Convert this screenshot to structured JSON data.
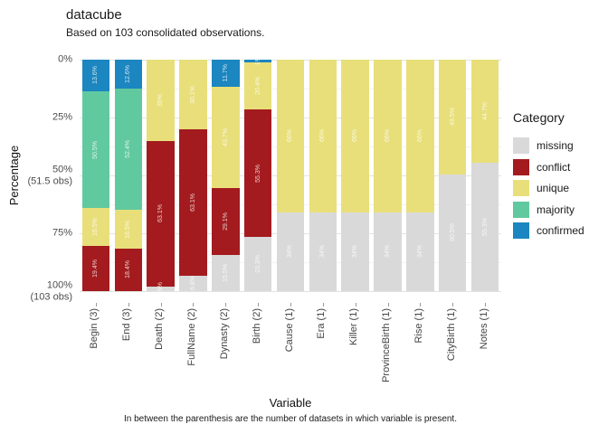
{
  "chart_data": {
    "type": "bar",
    "stacked": true,
    "percent": true,
    "y_reversed": true,
    "grid": true,
    "title": "datacube",
    "subtitle": "Based on 103 consolidated observations.",
    "xlabel": "Variable",
    "ylabel": "Percentage",
    "caption": "In between the parenthesis are the number of datasets in which variable is present.",
    "ylim": [
      0,
      100
    ],
    "y_ticks": [
      {
        "pct": 0,
        "label": "0%"
      },
      {
        "pct": 25,
        "label": "25%"
      },
      {
        "pct": 50,
        "label": "50%",
        "sublabel": "(51.5 obs)"
      },
      {
        "pct": 75,
        "label": "75%"
      },
      {
        "pct": 100,
        "label": "100%",
        "sublabel": "(103 obs)"
      }
    ],
    "y_minor_ticks": [
      12.5,
      37.5,
      62.5,
      87.5
    ],
    "categories": [
      "Begin (3)",
      "End (3)",
      "Death (2)",
      "FullName (2)",
      "Dynasty (2)",
      "Birth (2)",
      "Cause (1)",
      "Era (1)",
      "Killer (1)",
      "ProvinceBirth (1)",
      "Rise (1)",
      "CityBirth (1)",
      "Notes (1)"
    ],
    "stack_order_top_to_bottom": [
      "confirmed",
      "majority",
      "unique",
      "conflict",
      "missing"
    ],
    "series": [
      {
        "name": "confirmed",
        "color": "#1b86c0",
        "values": [
          13.6,
          12.6,
          0,
          0,
          11.7,
          1,
          0,
          0,
          0,
          0,
          0,
          0,
          0
        ]
      },
      {
        "name": "majority",
        "color": "#61c99f",
        "values": [
          50.5,
          52.4,
          0,
          0,
          0,
          0,
          0,
          0,
          0,
          0,
          0,
          0,
          0
        ]
      },
      {
        "name": "unique",
        "color": "#e8df7a",
        "values": [
          16.5,
          16.5,
          35,
          30.1,
          43.7,
          20.4,
          66,
          66,
          66,
          66,
          66,
          49.5,
          44.7
        ]
      },
      {
        "name": "conflict",
        "color": "#a31b1e",
        "values": [
          19.4,
          18.4,
          63.1,
          63.1,
          29.1,
          55.3,
          0,
          0,
          0,
          0,
          0,
          0,
          0
        ]
      },
      {
        "name": "missing",
        "color": "#d9d9d9",
        "values": [
          0,
          0,
          1.9,
          6.8,
          15.5,
          23.3,
          34,
          34,
          34,
          34,
          34,
          50.5,
          55.3
        ]
      }
    ],
    "legend": {
      "title": "Category",
      "position": "right",
      "items": [
        {
          "label": "missing",
          "color": "#d9d9d9"
        },
        {
          "label": "conflict",
          "color": "#a31b1e"
        },
        {
          "label": "unique",
          "color": "#e8df7a"
        },
        {
          "label": "majority",
          "color": "#61c99f"
        },
        {
          "label": "confirmed",
          "color": "#1b86c0"
        }
      ]
    }
  }
}
